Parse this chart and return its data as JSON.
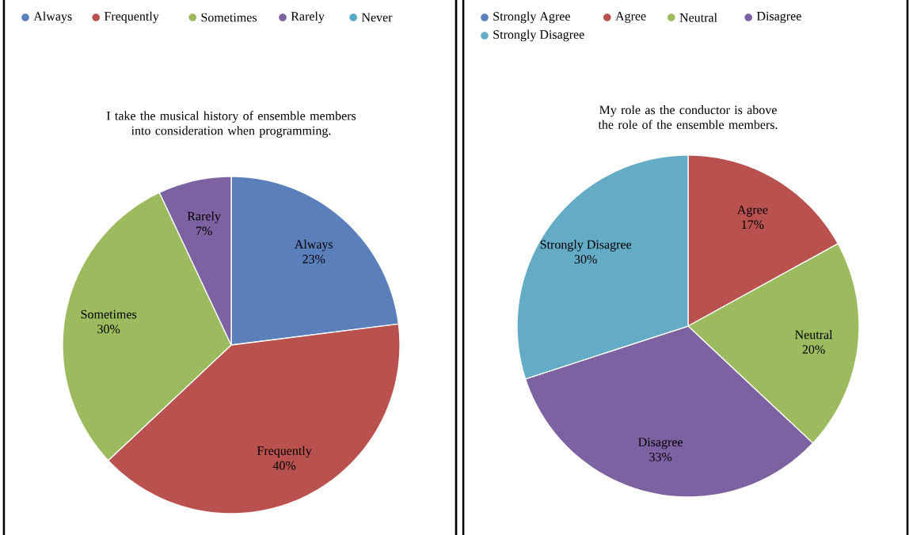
{
  "chart_data": [
    {
      "type": "pie",
      "title": "I take the musical history of ensemble members into consideration when programming.",
      "categories": [
        "Always",
        "Frequently",
        "Sometimes",
        "Rarely",
        "Never"
      ],
      "values": [
        23,
        40,
        30,
        7,
        0
      ],
      "value_labels": [
        "23%",
        "40%",
        "30%",
        "7%",
        null
      ],
      "colors": [
        "#5a7fbb",
        "#b9524f",
        "#9cbb5e",
        "#7c62a0",
        "#55a8c5"
      ],
      "legend": "top"
    },
    {
      "type": "pie",
      "title": "My role as the conductor is above the role of the ensemble members.",
      "categories": [
        "Strongly Agree",
        "Agree",
        "Neutral",
        "Disagree",
        "Strongly Disagree"
      ],
      "values": [
        0,
        17,
        20,
        33,
        30
      ],
      "value_labels": [
        null,
        "17%",
        "20%",
        "33%",
        "30%"
      ],
      "colors": [
        "#5a7fbb",
        "#b9524f",
        "#9cbb5e",
        "#7c62a0",
        "#64abc6"
      ],
      "legend": "top"
    }
  ]
}
